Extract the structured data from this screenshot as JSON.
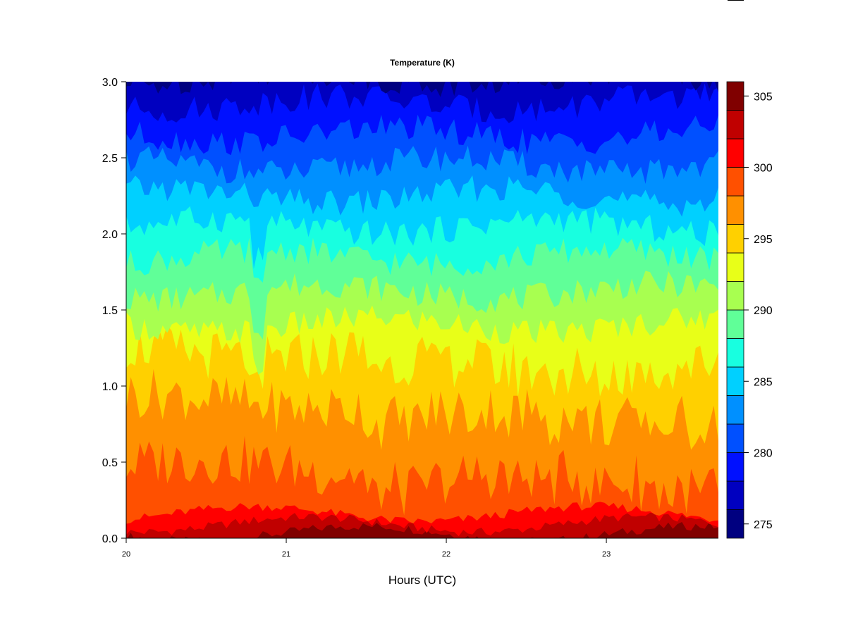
{
  "chart_data": {
    "type": "filled-contour",
    "title": "Temperature (K)",
    "xlabel": "Hours (UTC)",
    "ylabel": "",
    "xlim": [
      20,
      23.7
    ],
    "ylim": [
      0,
      3.0
    ],
    "x_ticks": [
      "20",
      "21",
      "22",
      "23"
    ],
    "y_ticks": [
      "0.0",
      "0.5",
      "1.0",
      "1.5",
      "2.0",
      "2.5",
      "3.0"
    ],
    "colorbar": {
      "range": [
        274,
        306
      ],
      "levels": [
        274,
        276,
        278,
        280,
        282,
        284,
        286,
        288,
        290,
        292,
        294,
        296,
        298,
        300,
        302,
        304,
        306
      ],
      "tick_labels": [
        "275",
        "280",
        "285",
        "290",
        "295",
        "300",
        "305"
      ],
      "tick_values": [
        275,
        280,
        285,
        290,
        295,
        300,
        305
      ],
      "colors": [
        "#000080",
        "#0000c0",
        "#0010ff",
        "#0050ff",
        "#0090ff",
        "#00d0ff",
        "#18ffe0",
        "#60ff98",
        "#a8ff50",
        "#e8ff18",
        "#ffd000",
        "#ff9000",
        "#ff5000",
        "#ff0000",
        "#c00000",
        "#800000"
      ]
    },
    "approx_contour_heights": [
      {
        "level": 304,
        "height": 0.03
      },
      {
        "level": 302,
        "height": 0.09
      },
      {
        "level": 300,
        "height": 0.16
      },
      {
        "level": 298,
        "height": 0.42
      },
      {
        "level": 296,
        "height": 0.85
      },
      {
        "level": 294,
        "height": 1.18
      },
      {
        "level": 292,
        "height": 1.4
      },
      {
        "level": 290,
        "height": 1.62
      },
      {
        "level": 288,
        "height": 1.85
      },
      {
        "level": 286,
        "height": 2.05
      },
      {
        "level": 284,
        "height": 2.25
      },
      {
        "level": 282,
        "height": 2.45
      },
      {
        "level": 280,
        "height": 2.65
      },
      {
        "level": 278,
        "height": 2.86
      },
      {
        "level": 276,
        "height": 3.02
      }
    ]
  }
}
